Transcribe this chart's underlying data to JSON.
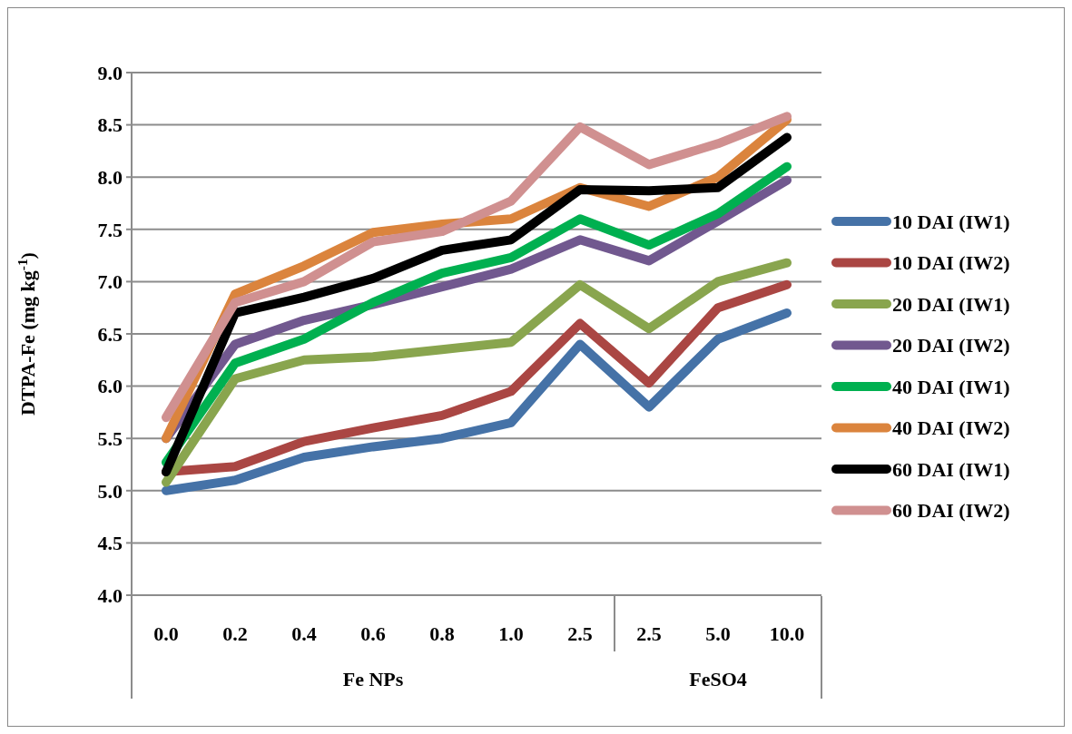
{
  "chart_data": {
    "type": "line",
    "ylabel": "DTPA-Fe (mg kg$^{-1}$)",
    "categories": [
      "0.0",
      "0.2",
      "0.4",
      "0.6",
      "0.8",
      "1.0",
      "2.5",
      "2.5",
      "5.0",
      "10.0"
    ],
    "annotations": [
      "Fe NPs",
      "FeSO4"
    ],
    "ylim": [
      4,
      9
    ],
    "yticks": [
      {
        "value": 4,
        "label": "4.0"
      },
      {
        "value": 4.5,
        "label": "4.5"
      },
      {
        "value": 5,
        "label": "5.0"
      },
      {
        "value": 5.5,
        "label": "5.5"
      },
      {
        "value": 6,
        "label": "6.0"
      },
      {
        "value": 6.5,
        "label": "6.5"
      },
      {
        "value": 7,
        "label": "7.0"
      },
      {
        "value": 7.5,
        "label": "7.5"
      },
      {
        "value": 8,
        "label": "8.0"
      },
      {
        "value": 8.5,
        "label": "8.5"
      },
      {
        "value": 9,
        "label": "9.0"
      }
    ],
    "grid": "y",
    "legend": "right",
    "marker": "none",
    "line_style": "solid",
    "series": [
      {
        "name": "10 DAI (IW1)",
        "color": "#4572a7",
        "values": [
          5.0,
          5.1,
          5.32,
          5.42,
          5.5,
          5.65,
          6.4,
          5.8,
          6.45,
          6.7
        ]
      },
      {
        "name": "10 DAI (IW2)",
        "color": "#aa4643",
        "values": [
          5.18,
          5.23,
          5.47,
          5.6,
          5.72,
          5.95,
          6.6,
          6.03,
          6.75,
          6.97
        ]
      },
      {
        "name": "20 DAI (IW1)",
        "color": "#89a54e",
        "values": [
          5.08,
          6.07,
          6.25,
          6.28,
          6.35,
          6.42,
          6.97,
          6.55,
          7.0,
          7.18
        ]
      },
      {
        "name": "20 DAI (IW2)",
        "color": "#71588f",
        "values": [
          5.5,
          6.4,
          6.63,
          6.78,
          6.95,
          7.12,
          7.4,
          7.2,
          7.58,
          7.97
        ]
      },
      {
        "name": "40 DAI (IW1)",
        "color": "#00b050",
        "values": [
          5.27,
          6.22,
          6.45,
          6.8,
          7.08,
          7.23,
          7.6,
          7.35,
          7.65,
          8.1
        ]
      },
      {
        "name": "40 DAI (IW2)",
        "color": "#db843d",
        "values": [
          5.5,
          6.88,
          7.15,
          7.47,
          7.55,
          7.6,
          7.9,
          7.72,
          8.0,
          8.55
        ]
      },
      {
        "name": "60 DAI (IW1)",
        "color": "#000000",
        "values": [
          5.18,
          6.7,
          6.85,
          7.03,
          7.3,
          7.4,
          7.88,
          7.87,
          7.9,
          8.38
        ]
      },
      {
        "name": "60 DAI (IW2)",
        "color": "#d09090",
        "values": [
          5.7,
          6.8,
          7.0,
          7.38,
          7.48,
          7.77,
          8.48,
          8.12,
          8.32,
          8.58
        ]
      }
    ]
  }
}
